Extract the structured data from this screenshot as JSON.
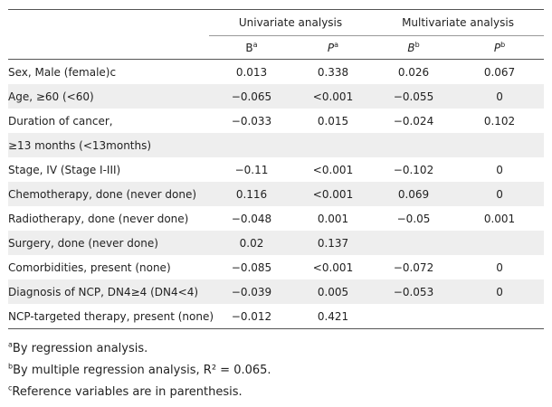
{
  "header": {
    "univariate": "Univariate analysis",
    "multivariate": "Multivariate analysis",
    "uni_b": "B",
    "uni_b_sup": "a",
    "uni_p": "P",
    "uni_p_sup": "a",
    "multi_b": "B",
    "multi_b_sup": "b",
    "multi_p": "P",
    "multi_p_sup": "b"
  },
  "rows": [
    {
      "label": "Sex, Male (female)c",
      "ub": "0.013",
      "up": "0.338",
      "mb": "0.026",
      "mp": "0.067"
    },
    {
      "label": "Age, ≥60 (<60)",
      "ub": "−0.065",
      "up": "<0.001",
      "mb": "−0.055",
      "mp": "0"
    },
    {
      "label": "Duration of cancer,",
      "ub": "−0.033",
      "up": "0.015",
      "mb": "−0.024",
      "mp": "0.102"
    },
    {
      "label": "≥13 months (<13months)",
      "ub": "",
      "up": "",
      "mb": "",
      "mp": ""
    },
    {
      "label": "Stage, IV (Stage I-III)",
      "ub": "−0.11",
      "up": "<0.001",
      "mb": "−0.102",
      "mp": "0"
    },
    {
      "label": "Chemotherapy, done (never done)",
      "ub": "0.116",
      "up": "<0.001",
      "mb": "0.069",
      "mp": "0"
    },
    {
      "label": "Radiotherapy, done (never done)",
      "ub": "−0.048",
      "up": "0.001",
      "mb": "−0.05",
      "mp": "0.001"
    },
    {
      "label": "Surgery, done (never done)",
      "ub": "0.02",
      "up": "0.137",
      "mb": "",
      "mp": ""
    },
    {
      "label": "Comorbidities, present (none)",
      "ub": "−0.085",
      "up": "<0.001",
      "mb": "−0.072",
      "mp": "0"
    },
    {
      "label": "Diagnosis of NCP, DN4≥4 (DN4<4)",
      "ub": "−0.039",
      "up": "0.005",
      "mb": "−0.053",
      "mp": "0"
    },
    {
      "label": "NCP-targeted therapy, present (none)",
      "ub": "−0.012",
      "up": "0.421",
      "mb": "",
      "mp": ""
    }
  ],
  "footnotes": [
    {
      "mark": "a",
      "text": "By regression analysis."
    },
    {
      "mark": "b",
      "text": "By multiple regression analysis, R² = 0.065."
    },
    {
      "mark": "c",
      "text": "Reference variables are in parenthesis."
    }
  ]
}
